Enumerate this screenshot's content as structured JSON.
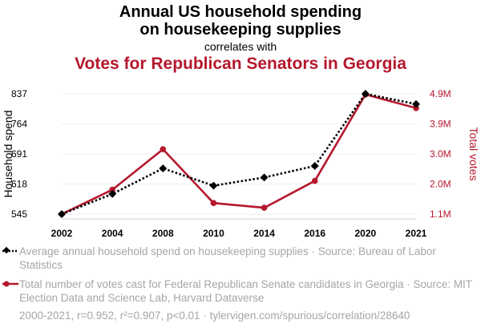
{
  "title": {
    "line1": "Annual US household spending",
    "line2": "on housekeeping supplies",
    "connector": "correlates with",
    "line3": "Votes for Republican Senators in Georgia"
  },
  "colors": {
    "series1": "#000000",
    "series2": "#b5182d",
    "grid": "#eeeeee",
    "legend_text": "#a6a6a6"
  },
  "chart_data": {
    "type": "line",
    "x": [
      "2002",
      "2004",
      "2008",
      "2010",
      "2014",
      "2016",
      "2020",
      "2021"
    ],
    "left_axis": {
      "label": "Household spend",
      "ticks": [
        "545",
        "618",
        "691",
        "764",
        "837"
      ],
      "ylim": [
        545,
        837
      ]
    },
    "right_axis": {
      "label": "Total votes",
      "ticks": [
        "1.1M",
        "2.0M",
        "3.0M",
        "3.9M",
        "4.9M"
      ],
      "ylim": [
        1100000,
        4900000
      ]
    },
    "series": [
      {
        "name": "Average annual household spend on housekeeping supplies · Source: Bureau of Labor Statistics",
        "axis": "left",
        "style": "dotted with diamond markers",
        "values": [
          545,
          594,
          656,
          614,
          634,
          662,
          837,
          812
        ]
      },
      {
        "name": "Total number of votes cast for Federal Republican Senate candidates in Georgia · Source: MIT Election Data and Science Lab, Harvard Dataverse",
        "axis": "right",
        "style": "solid with circle markers",
        "values": [
          1100000,
          1870000,
          3150000,
          1450000,
          1300000,
          2150000,
          4880000,
          4450000
        ]
      }
    ],
    "grid": true,
    "legend_position": "bottom"
  },
  "footer": "2000-2021, r=0.952, r²=0.907, p<0.01 · tylervigen.com/spurious/correlation/28640"
}
